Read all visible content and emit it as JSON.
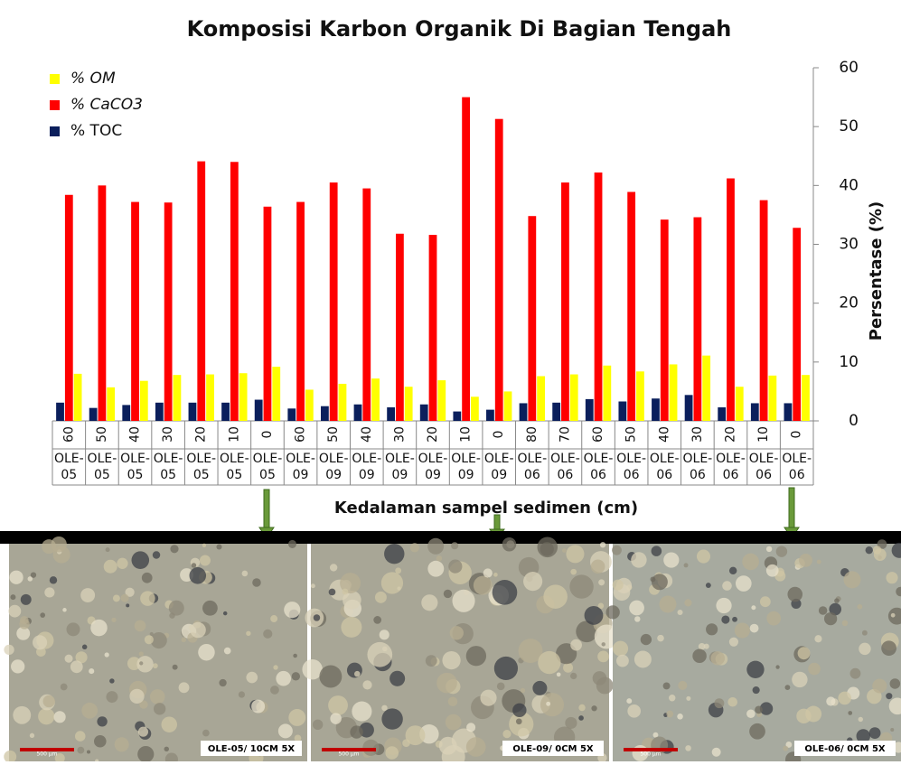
{
  "chart_data": {
    "type": "bar",
    "title": "Komposisi Karbon Organik Di Bagian Tengah",
    "x_label": "Kedalaman sampel sedimen (cm)",
    "y_label": "Persentase (%)",
    "categories": [
      "60",
      "50",
      "40",
      "30",
      "20",
      "10",
      "0",
      "60",
      "50",
      "40",
      "30",
      "20",
      "10",
      "0",
      "80",
      "70",
      "60",
      "50",
      "40",
      "30",
      "20",
      "10",
      "0"
    ],
    "stations": [
      "OLE-05",
      "OLE-05",
      "OLE-05",
      "OLE-05",
      "OLE-05",
      "OLE-05",
      "OLE-05",
      "OLE-09",
      "OLE-09",
      "OLE-09",
      "OLE-09",
      "OLE-09",
      "OLE-09",
      "OLE-09",
      "OLE-06",
      "OLE-06",
      "OLE-06",
      "OLE-06",
      "OLE-06",
      "OLE-06",
      "OLE-06",
      "OLE-06",
      "OLE-06"
    ],
    "series": [
      {
        "name": "% TOC",
        "color": "#0b1f5c",
        "values": [
          3.1,
          2.2,
          2.7,
          3.1,
          3.1,
          3.1,
          3.6,
          2.1,
          2.5,
          2.8,
          2.3,
          2.8,
          1.6,
          1.9,
          3.0,
          3.1,
          3.7,
          3.3,
          3.8,
          4.4,
          2.3,
          3.0,
          3.0
        ]
      },
      {
        "name": "% CaCO3",
        "color": "#ff0000",
        "values": [
          38.4,
          40,
          37.2,
          37.1,
          44.1,
          44,
          36.4,
          37.2,
          40.5,
          39.5,
          31.8,
          31.6,
          55,
          51.3,
          34.8,
          40.5,
          42.2,
          38.9,
          34.2,
          34.6,
          41.2,
          37.5,
          32.8
        ]
      },
      {
        "name": "% OM",
        "color": "#ffff00",
        "values": [
          8,
          5.7,
          6.8,
          7.8,
          7.9,
          8.1,
          9.2,
          5.3,
          6.3,
          7.2,
          5.8,
          6.9,
          4.1,
          5,
          7.6,
          7.9,
          9.4,
          8.4,
          9.6,
          11.1,
          5.8,
          7.7,
          7.8
        ]
      }
    ],
    "ylim": [
      0,
      60
    ],
    "yticks": [
      0,
      10,
      20,
      30,
      40,
      50,
      60
    ],
    "y_axis_side": "right",
    "legend": "top-left"
  },
  "photos": [
    {
      "caption": "OLE-05/ 10CM 5X",
      "scale": "500 µm"
    },
    {
      "caption": "OLE-09/ 0CM 5X",
      "scale": "500 µm"
    },
    {
      "caption": "OLE-06/ 0CM 5X",
      "scale": "500 µm"
    }
  ]
}
